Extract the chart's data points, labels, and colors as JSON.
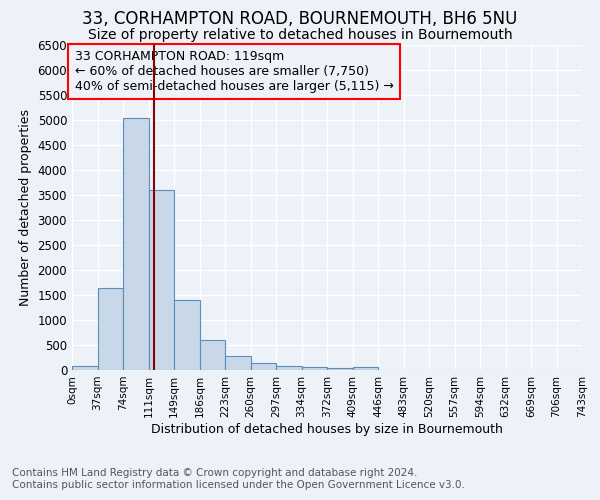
{
  "title1": "33, CORHAMPTON ROAD, BOURNEMOUTH, BH6 5NU",
  "title2": "Size of property relative to detached houses in Bournemouth",
  "xlabel": "Distribution of detached houses by size in Bournemouth",
  "ylabel": "Number of detached properties",
  "bin_labels": [
    "0sqm",
    "37sqm",
    "74sqm",
    "111sqm",
    "149sqm",
    "186sqm",
    "223sqm",
    "260sqm",
    "297sqm",
    "334sqm",
    "372sqm",
    "409sqm",
    "446sqm",
    "483sqm",
    "520sqm",
    "557sqm",
    "594sqm",
    "632sqm",
    "669sqm",
    "706sqm",
    "743sqm"
  ],
  "bar_heights": [
    75,
    1650,
    5050,
    3600,
    1400,
    600,
    290,
    150,
    90,
    70,
    50,
    55,
    0,
    0,
    0,
    0,
    0,
    0,
    0,
    0
  ],
  "bar_color": "#c8d8e8",
  "bar_edge_color": "#5b8db8",
  "ylim": [
    0,
    6500
  ],
  "yticks": [
    0,
    500,
    1000,
    1500,
    2000,
    2500,
    3000,
    3500,
    4000,
    4500,
    5000,
    5500,
    6000,
    6500
  ],
  "red_line_x": 119,
  "bin_width": 37,
  "annotation_line1": "33 CORHAMPTON ROAD: 119sqm",
  "annotation_line2": "← 60% of detached houses are smaller (7,750)",
  "annotation_line3": "40% of semi-detached houses are larger (5,115) →",
  "footer1": "Contains HM Land Registry data © Crown copyright and database right 2024.",
  "footer2": "Contains public sector information licensed under the Open Government Licence v3.0.",
  "bg_color": "#edf2f8",
  "grid_color": "#ffffff",
  "title1_fontsize": 12,
  "title2_fontsize": 10,
  "annotation_fontsize": 9,
  "footer_fontsize": 7.5,
  "footer_color": "#555555"
}
